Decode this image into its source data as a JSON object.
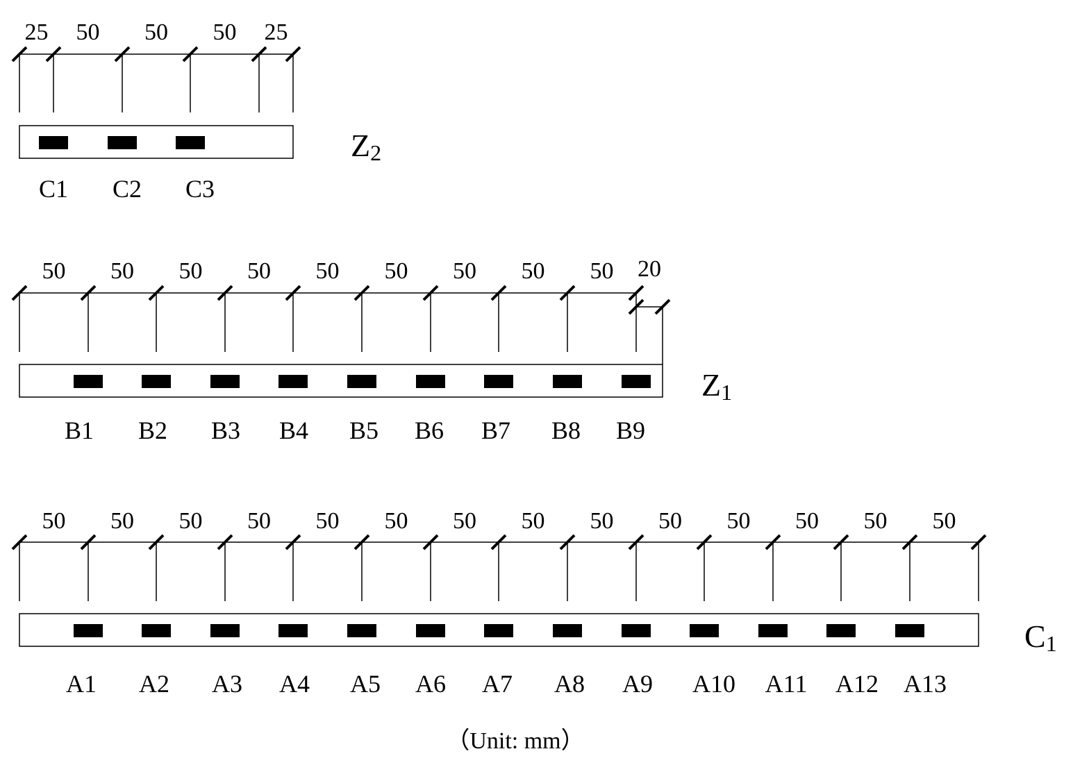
{
  "unit_note": "（Unit: mm）",
  "colors": {
    "ink": "#000000",
    "background": "#ffffff"
  },
  "beams": [
    {
      "id": "z2",
      "name_main": "Z",
      "name_sub": "2",
      "dimensions": [
        "25",
        "50",
        "50",
        "50",
        "25"
      ],
      "sensors": [
        "C1",
        "C2",
        "C3"
      ]
    },
    {
      "id": "z1",
      "name_main": "Z",
      "name_sub": "1",
      "dimensions": [
        "50",
        "50",
        "50",
        "50",
        "50",
        "50",
        "50",
        "50",
        "50",
        "20"
      ],
      "sensors": [
        "B1",
        "B2",
        "B3",
        "B4",
        "B5",
        "B6",
        "B7",
        "B8",
        "B9"
      ]
    },
    {
      "id": "c1",
      "name_main": "C",
      "name_sub": "1",
      "dimensions": [
        "50",
        "50",
        "50",
        "50",
        "50",
        "50",
        "50",
        "50",
        "50",
        "50",
        "50",
        "50",
        "50",
        "50"
      ],
      "sensors": [
        "A1",
        "A2",
        "A3",
        "A4",
        "A5",
        "A6",
        "A7",
        "A8",
        "A9",
        "A10",
        "A11",
        "A12",
        "A13"
      ]
    }
  ]
}
